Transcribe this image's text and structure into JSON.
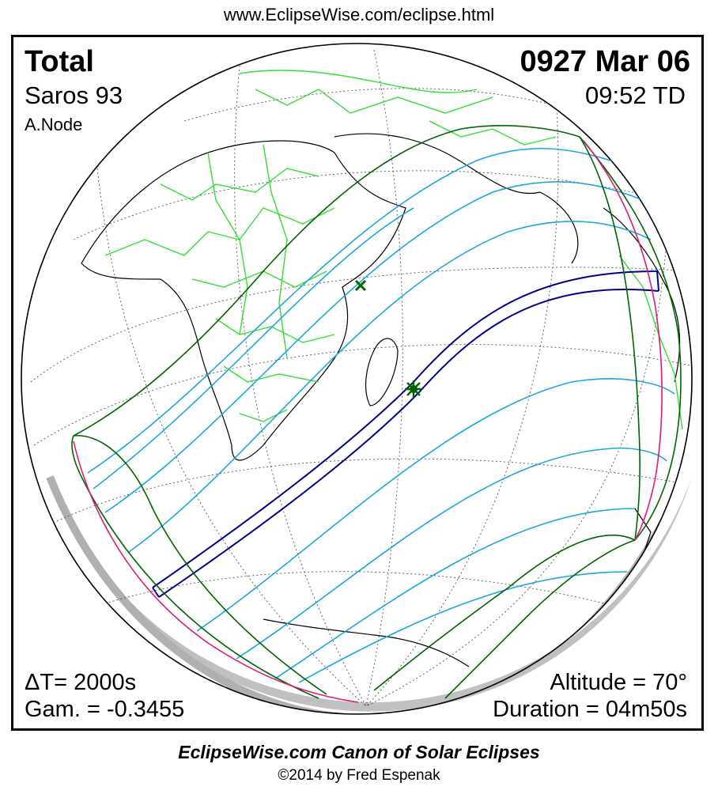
{
  "header": {
    "url": "www.EclipseWise.com/eclipse.html"
  },
  "eclipse": {
    "type": "Total",
    "saros": "Saros  93",
    "node": "A.Node",
    "date": "0927 Mar 06",
    "time": "09:52 TD",
    "delta_t": "ΔT=   2000s",
    "gamma": "Gam. = -0.3455",
    "altitude": "Altitude = 70°",
    "duration": "Duration = 04m50s"
  },
  "footer": {
    "title": "EclipseWise.com Canon of Solar Eclipses",
    "copyright": "©2014 by Fred Espenak"
  },
  "colors": {
    "land": "#33dd33",
    "coast": "#000000",
    "penumbral": "#1aa7e0",
    "umbral_path": "#00008b",
    "limits": "#006400",
    "sunrise_sunset": "#e0187a",
    "night_shadow": "#c0c0c0"
  },
  "markers": {
    "greatest_eclipse": "star-marker",
    "subsolar_point": "x-marker"
  }
}
